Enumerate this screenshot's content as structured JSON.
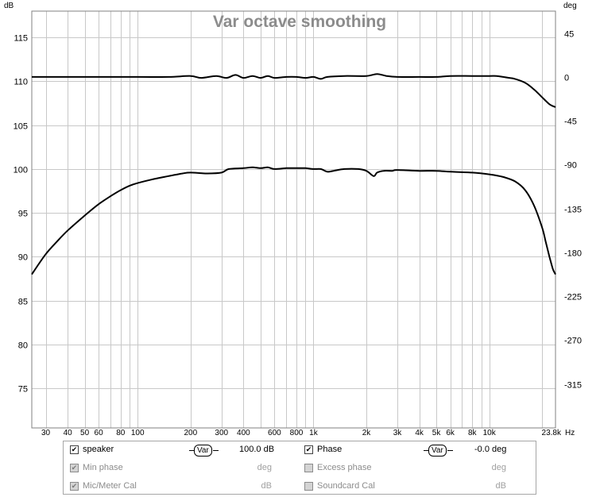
{
  "chart_data": {
    "type": "line",
    "title": "Var octave smoothing",
    "ylabel_left": "dB",
    "ylabel_right": "deg",
    "xunit": "Hz",
    "xscale": "log",
    "xlim": [
      25,
      23800
    ],
    "ylim": [
      70.5,
      118
    ],
    "ylim_right": [
      -360,
      67.5
    ],
    "grid": true,
    "yticks_left": [
      115,
      110,
      105,
      100,
      95,
      90,
      85,
      80,
      75
    ],
    "yticks_right": [
      45,
      0,
      -45,
      -90,
      -135,
      -180,
      -225,
      -270,
      -315
    ],
    "xtick_labels": [
      {
        "f": 30,
        "label": "30"
      },
      {
        "f": 40,
        "label": "40"
      },
      {
        "f": 50,
        "label": "50"
      },
      {
        "f": 60,
        "label": "60"
      },
      {
        "f": 80,
        "label": "80"
      },
      {
        "f": 100,
        "label": "100"
      },
      {
        "f": 200,
        "label": "200"
      },
      {
        "f": 300,
        "label": "300"
      },
      {
        "f": 400,
        "label": "400"
      },
      {
        "f": 600,
        "label": "600"
      },
      {
        "f": 800,
        "label": "800"
      },
      {
        "f": 1000,
        "label": "1k"
      },
      {
        "f": 2000,
        "label": "2k"
      },
      {
        "f": 3000,
        "label": "3k"
      },
      {
        "f": 4000,
        "label": "4k"
      },
      {
        "f": 5000,
        "label": "5k"
      },
      {
        "f": 6000,
        "label": "6k"
      },
      {
        "f": 8000,
        "label": "8k"
      },
      {
        "f": 10000,
        "label": "10k"
      },
      {
        "f": 23800,
        "label": "23.8k"
      }
    ],
    "series": [
      {
        "name": "speaker",
        "axis": "left",
        "color": "#000000",
        "x": [
          25,
          30,
          35,
          40,
          50,
          60,
          70,
          80,
          90,
          100,
          120,
          150,
          180,
          200,
          250,
          300,
          330,
          400,
          450,
          500,
          550,
          600,
          700,
          800,
          900,
          1000,
          1100,
          1200,
          1300,
          1500,
          1800,
          2000,
          2200,
          2300,
          2500,
          2800,
          3000,
          4000,
          5000,
          6000,
          8000,
          10000,
          12000,
          14000,
          16000,
          18000,
          20000,
          21000,
          22000,
          23000,
          23800
        ],
        "y": [
          88,
          90.3,
          91.8,
          93,
          94.7,
          96,
          96.9,
          97.6,
          98.1,
          98.4,
          98.8,
          99.2,
          99.5,
          99.6,
          99.5,
          99.6,
          100,
          100.1,
          100.2,
          100.1,
          100.2,
          100,
          100.1,
          100.1,
          100.1,
          100,
          100,
          99.7,
          99.8,
          100,
          100,
          99.8,
          99.2,
          99.6,
          99.8,
          99.8,
          99.9,
          99.8,
          99.8,
          99.7,
          99.6,
          99.4,
          99.1,
          98.6,
          97.6,
          95.8,
          93.3,
          91.6,
          90,
          88.6,
          88
        ]
      },
      {
        "name": "Phase",
        "axis": "right",
        "color": "#000000",
        "x": [
          25,
          50,
          100,
          150,
          200,
          230,
          280,
          320,
          360,
          400,
          450,
          500,
          550,
          600,
          700,
          800,
          900,
          1000,
          1100,
          1200,
          1500,
          2000,
          2300,
          2600,
          3000,
          4000,
          5000,
          6000,
          8000,
          10000,
          11000,
          12000,
          13000,
          14000,
          16000,
          18000,
          20000,
          22000,
          23800
        ],
        "y": [
          0,
          0,
          0,
          0,
          1,
          -1,
          1,
          -1,
          2,
          -1,
          1,
          -1,
          1,
          -1,
          0,
          0,
          -1,
          0,
          -2,
          0,
          1,
          1,
          3,
          1,
          0,
          0,
          0,
          1,
          1,
          1,
          1,
          0,
          -1,
          -2,
          -6,
          -13,
          -21,
          -28,
          -31
        ]
      }
    ]
  },
  "legend": {
    "row1": {
      "speaker_label": "speaker",
      "speaker_checked": "✔",
      "speaker_smoothing": "Var",
      "speaker_value": "100.0 dB",
      "phase_label": "Phase",
      "phase_checked": "✔",
      "phase_smoothing": "Var",
      "phase_value": "-0.0 deg"
    },
    "row2": {
      "min_phase_label": "Min phase",
      "min_phase_checked": "✔",
      "min_phase_unit": "deg",
      "excess_phase_label": "Excess phase",
      "excess_phase_unit": "deg"
    },
    "row3": {
      "mic_cal_label": "Mic/Meter Cal",
      "mic_cal_checked": "✔",
      "mic_cal_unit": "dB",
      "soundcard_cal_label": "Soundcard Cal",
      "soundcard_cal_unit": "dB"
    }
  }
}
